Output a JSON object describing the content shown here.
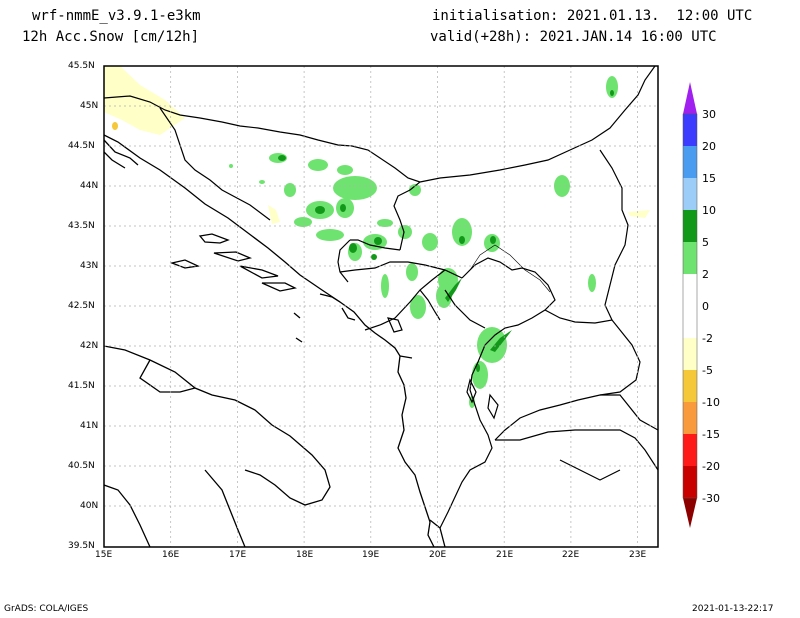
{
  "header": {
    "model": "wrf-nmmE_v3.9.1-e3km",
    "field": "12h Acc.Snow [cm/12h]",
    "init": "initialisation: 2021.01.13.  12:00 UTC",
    "valid": "valid(+28h): 2021.JAN.14 16:00 UTC"
  },
  "footer": {
    "left": "GrADS: COLA/IGES",
    "right": "2021-01-13-22:17"
  },
  "map": {
    "lon_ticks": [
      "15E",
      "16E",
      "17E",
      "18E",
      "19E",
      "20E",
      "21E",
      "22E",
      "23E"
    ],
    "lat_ticks": [
      "45.5N",
      "45N",
      "44.5N",
      "44N",
      "43.5N",
      "43N",
      "42.5N",
      "42N",
      "41.5N",
      "41N",
      "40.5N",
      "40N",
      "39.5N"
    ],
    "lon_range": [
      15,
      23.3
    ],
    "lat_range": [
      39.5,
      45.5
    ],
    "grid": true
  },
  "colorbar": {
    "labels": [
      "30",
      "20",
      "15",
      "10",
      "5",
      "2",
      "0",
      "-2",
      "-5",
      "-10",
      "-15",
      "-20",
      "-30"
    ],
    "colors": [
      "#a020f0",
      "#3c3cff",
      "#4a9cf0",
      "#9ccdf9",
      "#12991a",
      "#6fe36f",
      "#ffffff",
      "#ffffc8",
      "#f5c83a",
      "#f99a3c",
      "#ff1a1a",
      "#c80000",
      "#8c0000",
      "#6e0000"
    ]
  }
}
